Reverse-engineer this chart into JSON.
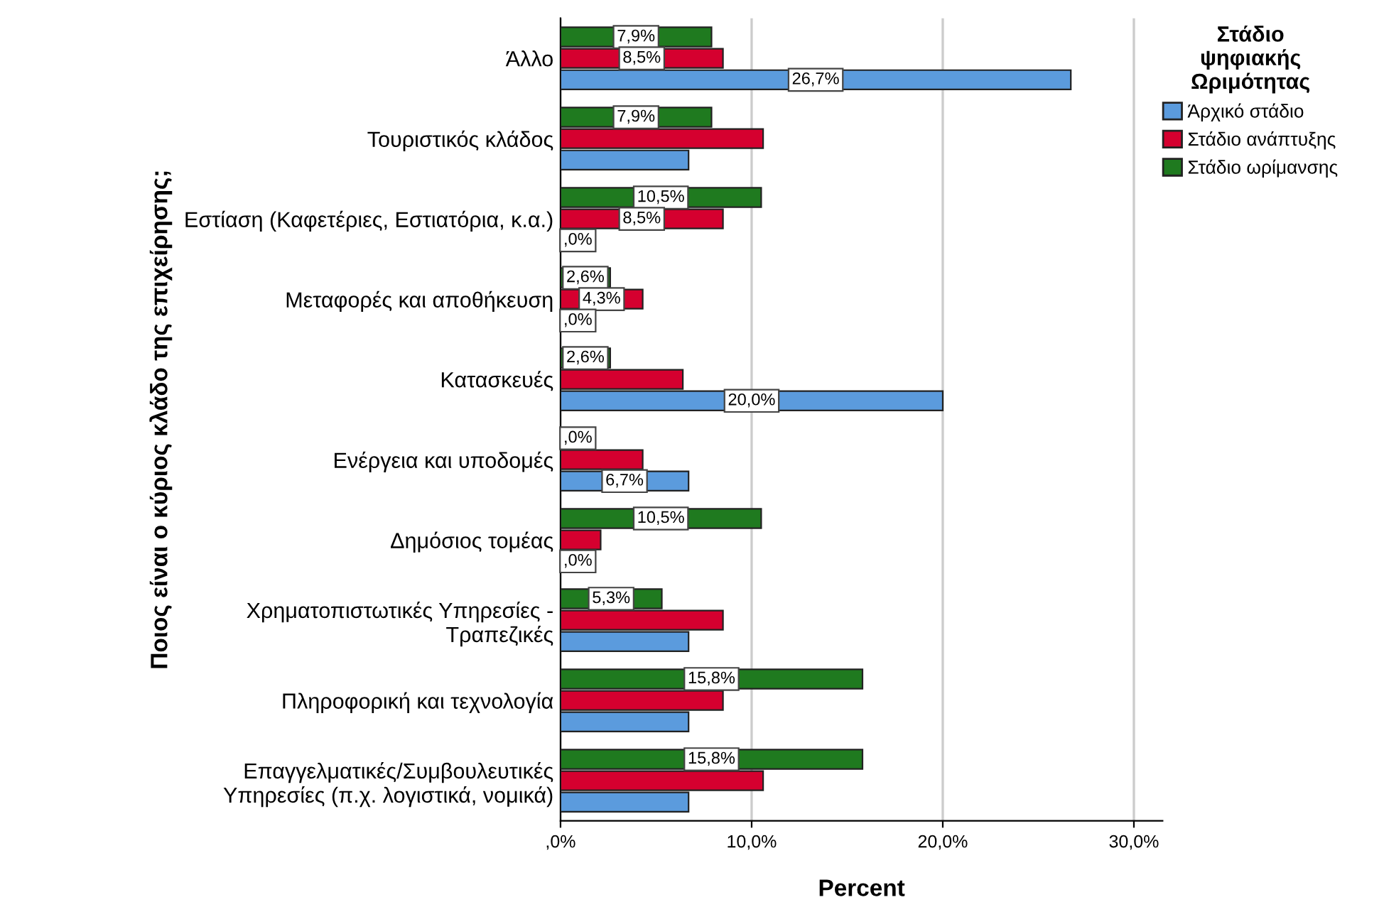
{
  "chart_data": {
    "type": "bar",
    "orientation": "horizontal",
    "categories": [
      "Άλλο",
      "Τουριστικός κλάδος",
      "Εστίαση (Καφετέριες, Εστιατόρια, κ.α.)",
      "Μεταφορές και αποθήκευση",
      "Κατασκευές",
      "Ενέργεια και υποδομές",
      "Δημόσιος τομέας",
      "Χρηματοπιστωτικές Υπηρεσίες -\nΤραπεζικές",
      "Πληροφορική και τεχνολογία",
      "Επαγγελματικές/Συμβουλευτικές\nΥπηρεσίες (π.χ. λογιστικά, νομικά)"
    ],
    "series": [
      {
        "name": "Στάδιο ωρίμανσης",
        "color": "#1f7a1f",
        "values": [
          7.9,
          7.9,
          10.5,
          2.6,
          2.6,
          0,
          10.5,
          5.3,
          15.8,
          15.8
        ],
        "value_labels": [
          "7,9%",
          "7,9%",
          "10,5%",
          "2,6%",
          "2,6%",
          ",0%",
          "10,5%",
          "5,3%",
          "15,8%",
          "15,8%"
        ]
      },
      {
        "name": "Στάδιο ανάπτυξης",
        "color": "#d5002f",
        "values": [
          8.5,
          10.6,
          8.5,
          4.3,
          6.4,
          4.3,
          2.1,
          8.5,
          8.5,
          10.6
        ],
        "value_labels": [
          "8,5%",
          null,
          "8,5%",
          "4,3%",
          null,
          null,
          null,
          null,
          null,
          null
        ]
      },
      {
        "name": "Άρχικό στάδιο",
        "color": "#5b9bdd",
        "values": [
          26.7,
          6.7,
          0,
          0,
          20.0,
          6.7,
          0,
          6.7,
          6.7,
          6.7
        ],
        "value_labels": [
          "26,7%",
          null,
          ",0%",
          ",0%",
          "20,0%",
          "6,7%",
          ",0%",
          null,
          null,
          null
        ]
      }
    ],
    "xlim": [
      0,
      31.5
    ],
    "xticks": [
      {
        "value": 0,
        "label": ",0%"
      },
      {
        "value": 10,
        "label": "10,0%"
      },
      {
        "value": 20,
        "label": "20,0%"
      },
      {
        "value": 30,
        "label": "30,0%"
      }
    ],
    "xlabel": "Percent",
    "ylabel": "Ποιος είναι ο κύριος κλάδο της επιχείρησης;",
    "legend_title": "Στάδιο\nψηφιακής\nΩριμότητας",
    "legend": "right",
    "grid": "x"
  }
}
